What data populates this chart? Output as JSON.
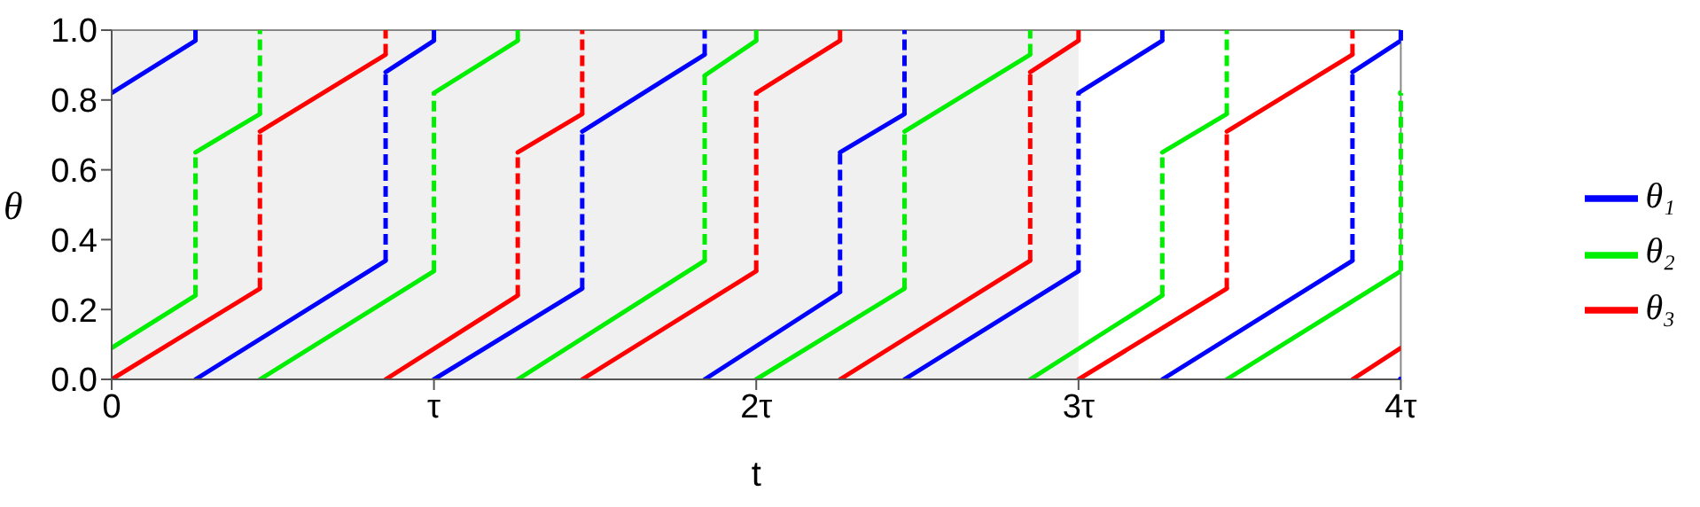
{
  "chart_data": {
    "type": "line",
    "xlabel": "t",
    "ylabel": "θ",
    "xlim": [
      0,
      4
    ],
    "xticks": [
      0,
      {
        "value": 1,
        "label": "τ"
      },
      {
        "value": 2,
        "label": "2τ"
      },
      {
        "value": 3,
        "label": "3τ"
      },
      {
        "value": 4,
        "label": "4τ"
      }
    ],
    "ylim": [
      0,
      1
    ],
    "yticks": [
      {
        "value": 0,
        "label": "0.0"
      },
      {
        "value": 0.2,
        "label": "0.2"
      },
      {
        "value": 0.4,
        "label": "0.4"
      },
      {
        "value": 0.6,
        "label": "0.6"
      },
      {
        "value": 0.8,
        "label": "0.8"
      },
      {
        "value": 1,
        "label": "1.0"
      }
    ],
    "grid": false,
    "legend": "right",
    "marker": "none",
    "line_style": "solid",
    "bands": [
      {
        "axis": "x",
        "from": 0,
        "to": 3,
        "color": "#f0f0f0"
      }
    ],
    "series": [
      {
        "name": "θ₁",
        "color": "#0000ff",
        "x": [
          0,
          0.26,
          null,
          0.26,
          0.85,
          null,
          0.85,
          1,
          null,
          1,
          1.46,
          null,
          1.46,
          1.84,
          null,
          1.84,
          2.26,
          null,
          2.26,
          2.46,
          null,
          2.46,
          3,
          null,
          3,
          3.26,
          null,
          3.26,
          3.85,
          null,
          3.85,
          4,
          null,
          4
        ],
        "values": [
          0.82,
          0.97,
          null,
          0,
          0.34,
          null,
          0.88,
          0.97,
          null,
          0,
          0.26,
          null,
          0.71,
          0.93,
          null,
          0,
          0.25,
          null,
          0.65,
          0.76,
          null,
          0,
          0.31,
          null,
          0.82,
          0.97,
          null,
          0,
          0.34,
          null,
          0.88,
          0.97,
          null,
          0
        ]
      },
      {
        "name": "θ₂",
        "color": "#00ee00",
        "x": [
          0,
          0.26,
          null,
          0.26,
          0.46,
          null,
          0.46,
          1,
          null,
          1,
          1.26,
          null,
          1.26,
          1.84,
          null,
          1.84,
          2,
          null,
          2,
          2.46,
          null,
          2.46,
          2.85,
          null,
          2.85,
          3.26,
          null,
          3.26,
          3.46,
          null,
          3.46,
          4,
          null,
          4
        ],
        "values": [
          0.09,
          0.24,
          null,
          0.65,
          0.76,
          null,
          0,
          0.31,
          null,
          0.82,
          0.97,
          null,
          0,
          0.34,
          null,
          0.87,
          0.97,
          null,
          0,
          0.26,
          null,
          0.71,
          0.93,
          null,
          0,
          0.24,
          null,
          0.65,
          0.76,
          null,
          0,
          0.31,
          null,
          0.82
        ]
      },
      {
        "name": "θ₃",
        "color": "#ff0000",
        "x": [
          0,
          0.46,
          null,
          0.46,
          0.85,
          null,
          0.85,
          1.26,
          null,
          1.26,
          1.46,
          null,
          1.46,
          2,
          null,
          2,
          2.26,
          null,
          2.26,
          2.85,
          null,
          2.85,
          3,
          null,
          3,
          3.46,
          null,
          3.46,
          3.85,
          null,
          3.85,
          4
        ],
        "values": [
          0,
          0.26,
          null,
          0.71,
          0.93,
          null,
          0,
          0.24,
          null,
          0.65,
          0.76,
          null,
          0,
          0.31,
          null,
          0.82,
          0.97,
          null,
          0,
          0.34,
          null,
          0.88,
          0.97,
          null,
          0,
          0.26,
          null,
          0.71,
          0.93,
          null,
          0,
          0.09
        ]
      }
    ]
  }
}
